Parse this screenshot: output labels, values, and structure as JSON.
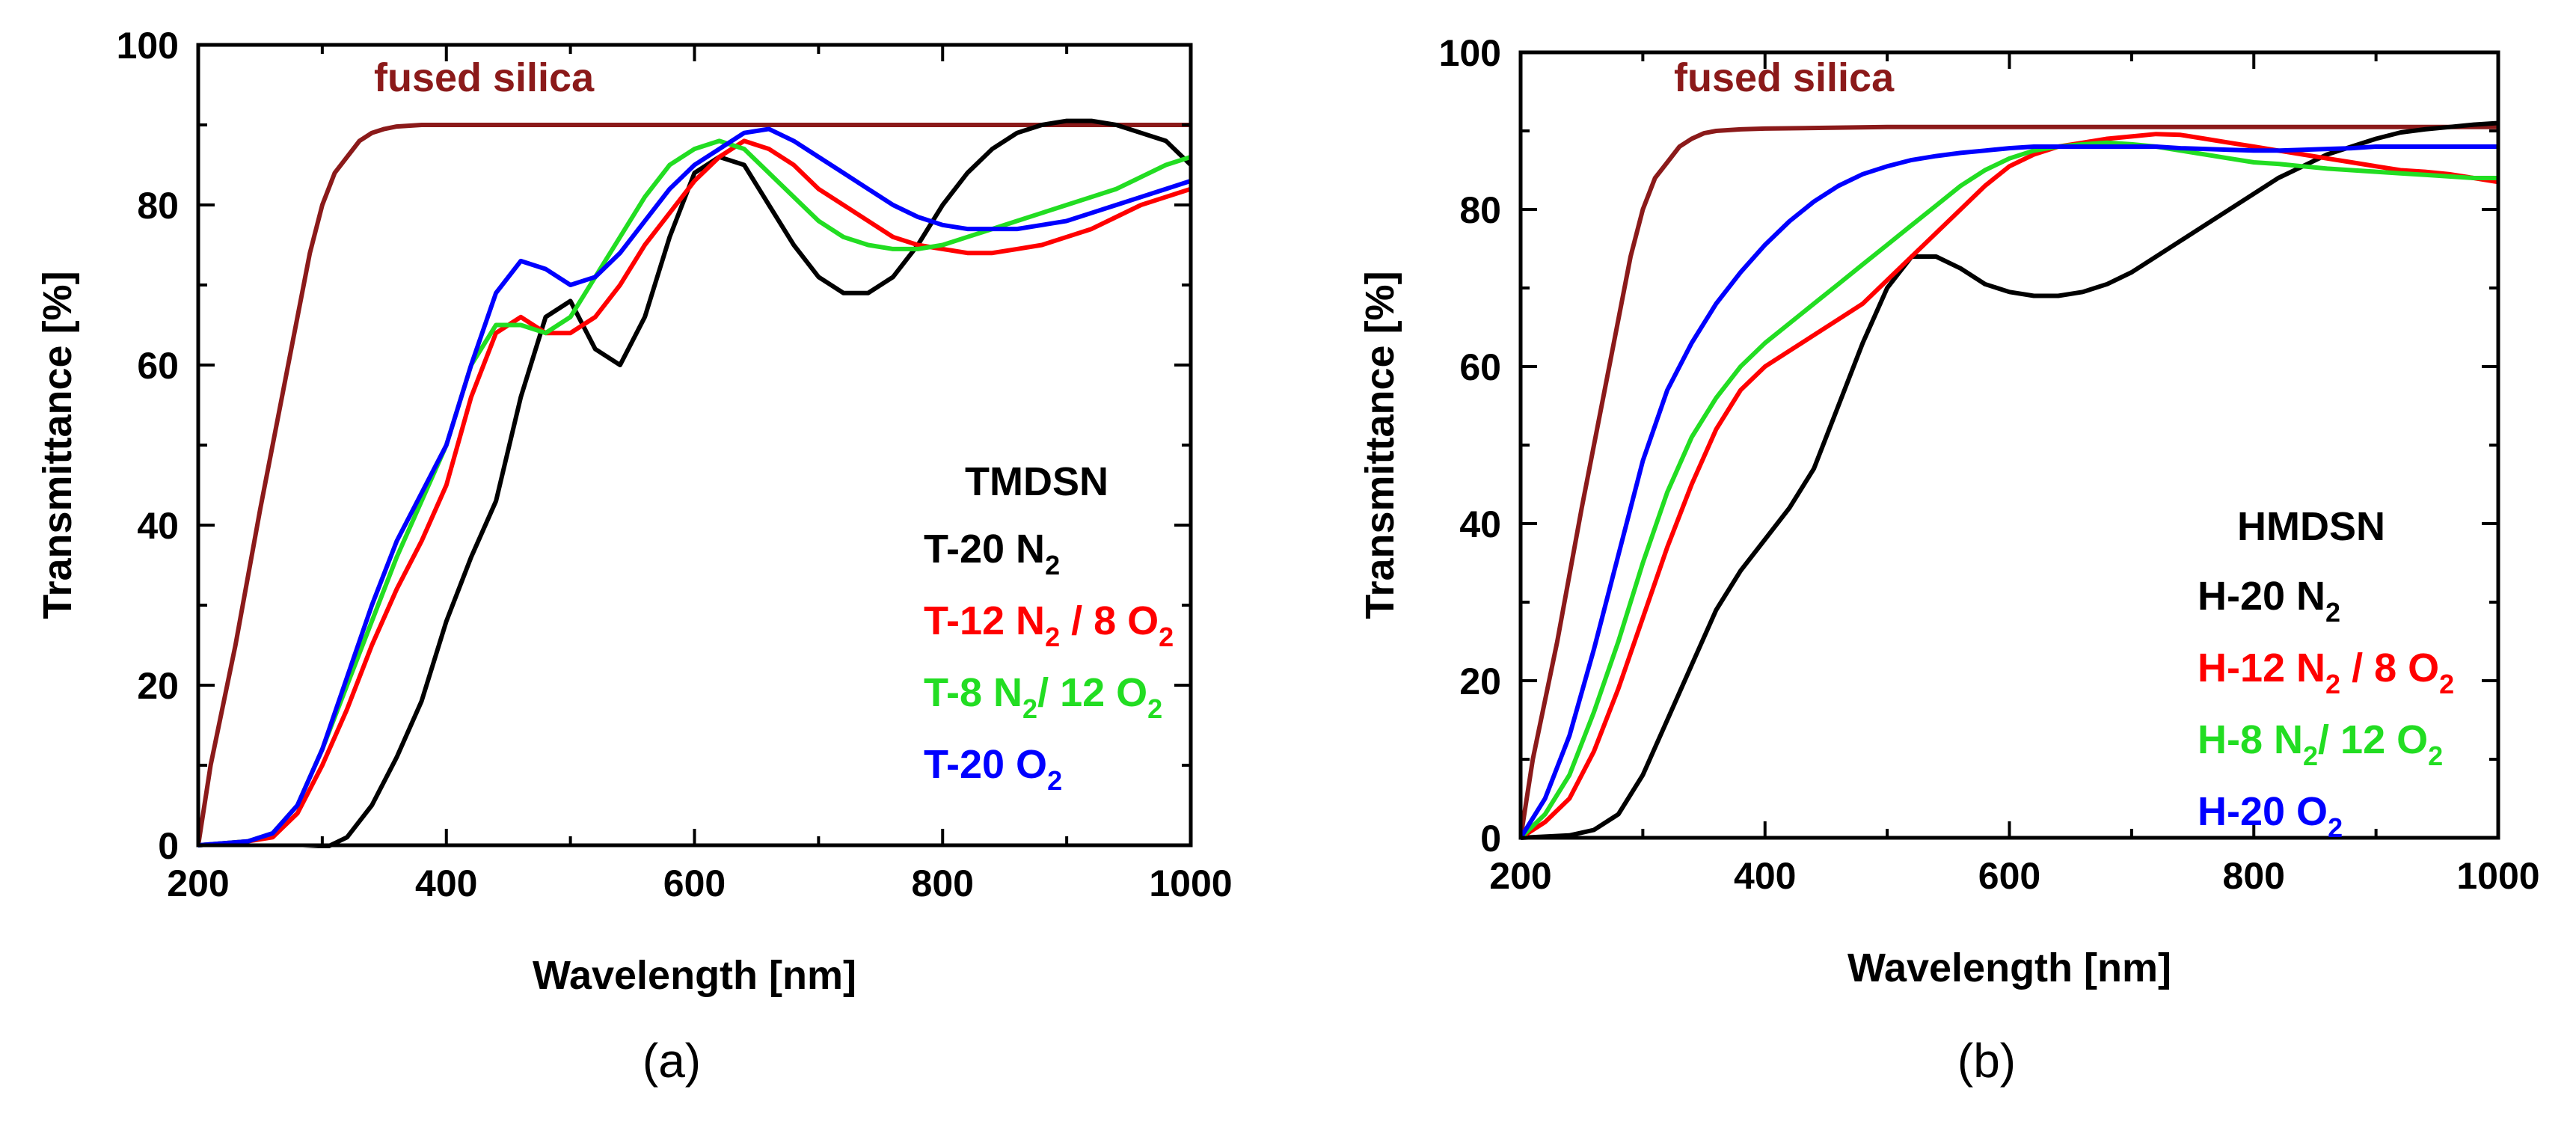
{
  "chart_data": [
    {
      "type": "line",
      "panel_label": "(a)",
      "xlabel": "Wavelength [nm]",
      "ylabel": "Transmittance [%]",
      "xlim": [
        200,
        1000
      ],
      "ylim": [
        0,
        100
      ],
      "xticks": [
        "200",
        "400",
        "600",
        "800",
        "1000"
      ],
      "yticks": [
        "0",
        "20",
        "40",
        "60",
        "80",
        "100"
      ],
      "annotation": {
        "text": "fused silica",
        "color": "#8b1a1a"
      },
      "legend": {
        "title": "TMDSN",
        "entries": [
          {
            "label": "T-20 N",
            "parts": [
              [
                "T-20 N",
                false
              ],
              [
                "2",
                true
              ]
            ],
            "color": "#000000"
          },
          {
            "label": "T-12 N2 / 8 O2",
            "parts": [
              [
                "T-12 N",
                false
              ],
              [
                "2",
                true
              ],
              [
                " / 8 O",
                false
              ],
              [
                "2",
                true
              ]
            ],
            "color": "#ff0000"
          },
          {
            "label": "T-8 N2/ 12 O2",
            "parts": [
              [
                "T-8 N",
                false
              ],
              [
                "2",
                true
              ],
              [
                "/ 12 O",
                false
              ],
              [
                "2",
                true
              ]
            ],
            "color": "#22dd22"
          },
          {
            "label": "T-20 O2",
            "parts": [
              [
                "T-20 O",
                false
              ],
              [
                "2",
                true
              ]
            ],
            "color": "#0000ff"
          }
        ]
      },
      "series": [
        {
          "name": "fused silica",
          "color": "#8b1a1a",
          "x": [
            200,
            210,
            230,
            250,
            270,
            290,
            300,
            310,
            320,
            330,
            340,
            350,
            360,
            380,
            400,
            500,
            700,
            900,
            1000
          ],
          "y": [
            0,
            10,
            25,
            42,
            58,
            74,
            80,
            84,
            86,
            88,
            89,
            89.5,
            89.8,
            90,
            90,
            90,
            90,
            90,
            90
          ]
        },
        {
          "name": "T-20 N2",
          "color": "#000000",
          "x": [
            200,
            250,
            300,
            320,
            340,
            360,
            380,
            400,
            420,
            440,
            460,
            480,
            500,
            520,
            540,
            560,
            580,
            600,
            620,
            640,
            660,
            680,
            700,
            720,
            740,
            760,
            780,
            800,
            820,
            840,
            860,
            880,
            900,
            920,
            940,
            960,
            980,
            1000
          ],
          "y": [
            -1,
            -1,
            -0.5,
            1,
            5,
            11,
            18,
            28,
            36,
            43,
            56,
            66,
            68,
            62,
            60,
            66,
            76,
            84,
            86,
            85,
            80,
            75,
            71,
            69,
            69,
            71,
            75,
            80,
            84,
            87,
            89,
            90,
            90.5,
            90.5,
            90,
            89,
            88,
            85
          ]
        },
        {
          "name": "T-12 N2 / 8 O2",
          "color": "#ff0000",
          "x": [
            200,
            240,
            260,
            280,
            300,
            320,
            340,
            360,
            380,
            400,
            420,
            440,
            460,
            480,
            500,
            520,
            540,
            560,
            580,
            600,
            620,
            640,
            660,
            680,
            700,
            720,
            740,
            760,
            780,
            800,
            820,
            840,
            860,
            880,
            900,
            920,
            940,
            960,
            980,
            1000
          ],
          "y": [
            0,
            0.5,
            1,
            4,
            10,
            17,
            25,
            32,
            38,
            45,
            56,
            64,
            66,
            64,
            64,
            66,
            70,
            75,
            79,
            83,
            86,
            88,
            87,
            85,
            82,
            80,
            78,
            76,
            75,
            74.5,
            74,
            74,
            74.5,
            75,
            76,
            77,
            78.5,
            80,
            81,
            82
          ]
        },
        {
          "name": "T-8 N2/ 12 O2",
          "color": "#22dd22",
          "x": [
            200,
            240,
            260,
            280,
            300,
            320,
            340,
            360,
            380,
            400,
            420,
            440,
            460,
            480,
            500,
            520,
            540,
            560,
            580,
            600,
            620,
            640,
            660,
            680,
            700,
            720,
            740,
            760,
            780,
            800,
            820,
            840,
            860,
            880,
            900,
            920,
            940,
            960,
            980,
            1000
          ],
          "y": [
            0,
            0.5,
            1.5,
            5,
            12,
            20,
            28,
            36,
            43,
            50,
            60,
            65,
            65,
            64,
            66,
            71,
            76,
            81,
            85,
            87,
            88,
            87,
            84,
            81,
            78,
            76,
            75,
            74.5,
            74.5,
            75,
            76,
            77,
            78,
            79,
            80,
            81,
            82,
            83.5,
            85,
            86
          ]
        },
        {
          "name": "T-20 O2",
          "color": "#0000ff",
          "x": [
            200,
            240,
            260,
            280,
            300,
            320,
            340,
            360,
            380,
            400,
            420,
            440,
            460,
            480,
            500,
            520,
            540,
            560,
            580,
            600,
            620,
            640,
            660,
            680,
            700,
            720,
            740,
            760,
            780,
            800,
            820,
            840,
            860,
            880,
            900,
            920,
            940,
            960,
            980,
            1000
          ],
          "y": [
            0,
            0.5,
            1.5,
            5,
            12,
            21,
            30,
            38,
            44,
            50,
            60,
            69,
            73,
            72,
            70,
            71,
            74,
            78,
            82,
            85,
            87,
            89,
            89.5,
            88,
            86,
            84,
            82,
            80,
            78.5,
            77.5,
            77,
            77,
            77,
            77.5,
            78,
            79,
            80,
            81,
            82,
            83
          ]
        }
      ]
    },
    {
      "type": "line",
      "panel_label": "(b)",
      "xlabel": "Wavelength [nm]",
      "ylabel": "Transmittance [%]",
      "xlim": [
        200,
        1000
      ],
      "ylim": [
        0,
        100
      ],
      "xticks": [
        "200",
        "400",
        "600",
        "800",
        "1000"
      ],
      "yticks": [
        "0",
        "20",
        "40",
        "60",
        "80",
        "100"
      ],
      "annotation": {
        "text": "fused silica",
        "color": "#8b1a1a"
      },
      "legend": {
        "title": "HMDSN",
        "entries": [
          {
            "label": "H-20 N2",
            "parts": [
              [
                "H-20 N",
                false
              ],
              [
                "2",
                true
              ]
            ],
            "color": "#000000"
          },
          {
            "label": "H-12 N2 / 8 O2",
            "parts": [
              [
                "H-12 N",
                false
              ],
              [
                "2",
                true
              ],
              [
                " / 8 O",
                false
              ],
              [
                "2",
                true
              ]
            ],
            "color": "#ff0000"
          },
          {
            "label": "H-8 N2/ 12 O2",
            "parts": [
              [
                "H-8 N",
                false
              ],
              [
                "2",
                true
              ],
              [
                "/ 12 O",
                false
              ],
              [
                "2",
                true
              ]
            ],
            "color": "#22dd22"
          },
          {
            "label": "H-20 O2",
            "parts": [
              [
                "H-20 O",
                false
              ],
              [
                "2",
                true
              ]
            ],
            "color": "#0000ff"
          }
        ]
      },
      "series": [
        {
          "name": "fused silica",
          "color": "#8b1a1a",
          "x": [
            200,
            210,
            230,
            250,
            270,
            290,
            300,
            310,
            320,
            330,
            340,
            350,
            360,
            380,
            400,
            500,
            700,
            900,
            1000
          ],
          "y": [
            0,
            10,
            25,
            42,
            58,
            74,
            80,
            84,
            86,
            88,
            89,
            89.7,
            90,
            90.2,
            90.3,
            90.5,
            90.5,
            90.5,
            90.5
          ]
        },
        {
          "name": "H-20 N2",
          "color": "#000000",
          "x": [
            200,
            240,
            260,
            280,
            300,
            320,
            340,
            360,
            380,
            400,
            420,
            440,
            460,
            480,
            500,
            520,
            540,
            560,
            580,
            600,
            620,
            640,
            660,
            680,
            700,
            720,
            740,
            760,
            780,
            800,
            820,
            840,
            860,
            880,
            900,
            920,
            940,
            960,
            980,
            1000
          ],
          "y": [
            0,
            0.3,
            1,
            3,
            8,
            15,
            22,
            29,
            34,
            38,
            42,
            47,
            55,
            63,
            70,
            74,
            74,
            72.5,
            70.5,
            69.5,
            69,
            69,
            69.5,
            70.5,
            72,
            74,
            76,
            78,
            80,
            82,
            84,
            85.5,
            87,
            88,
            89,
            89.8,
            90.2,
            90.5,
            90.8,
            91
          ]
        },
        {
          "name": "H-12 N2 / 8 O2",
          "color": "#ff0000",
          "x": [
            200,
            220,
            240,
            260,
            280,
            300,
            320,
            340,
            360,
            380,
            400,
            420,
            440,
            460,
            480,
            500,
            520,
            540,
            560,
            580,
            600,
            620,
            640,
            660,
            680,
            700,
            720,
            740,
            760,
            780,
            800,
            820,
            840,
            860,
            880,
            900,
            920,
            940,
            960,
            980,
            1000
          ],
          "y": [
            0,
            2,
            5,
            11,
            19,
            28,
            37,
            45,
            52,
            57,
            60,
            62,
            64,
            66,
            68,
            71,
            74,
            77,
            80,
            83,
            85.5,
            87,
            88,
            88.5,
            89,
            89.3,
            89.6,
            89.5,
            89,
            88.5,
            88,
            87.5,
            87,
            86.5,
            86,
            85.5,
            85,
            84.8,
            84.5,
            84,
            83.5
          ]
        },
        {
          "name": "H-8 N2/ 12 O2",
          "color": "#22dd22",
          "x": [
            200,
            220,
            240,
            260,
            280,
            300,
            320,
            340,
            360,
            380,
            400,
            420,
            440,
            460,
            480,
            500,
            520,
            540,
            560,
            580,
            600,
            620,
            640,
            660,
            680,
            700,
            720,
            740,
            760,
            780,
            800,
            820,
            840,
            860,
            880,
            900,
            920,
            940,
            960,
            980,
            1000
          ],
          "y": [
            0,
            3,
            8,
            16,
            25,
            35,
            44,
            51,
            56,
            60,
            63,
            65.5,
            68,
            70.5,
            73,
            75.5,
            78,
            80.5,
            83,
            85,
            86.5,
            87.5,
            88,
            88.3,
            88.5,
            88.3,
            88,
            87.5,
            87,
            86.5,
            86,
            85.8,
            85.5,
            85.2,
            85,
            84.8,
            84.6,
            84.4,
            84.2,
            84,
            84
          ]
        },
        {
          "name": "H-20 O2",
          "color": "#0000ff",
          "x": [
            200,
            220,
            240,
            260,
            280,
            300,
            320,
            340,
            360,
            380,
            400,
            420,
            440,
            460,
            480,
            500,
            520,
            540,
            560,
            580,
            600,
            620,
            640,
            660,
            680,
            700,
            720,
            740,
            760,
            780,
            800,
            820,
            840,
            860,
            880,
            900,
            920,
            940,
            960,
            980,
            1000
          ],
          "y": [
            0,
            5,
            13,
            24,
            36,
            48,
            57,
            63,
            68,
            72,
            75.5,
            78.5,
            81,
            83,
            84.5,
            85.5,
            86.3,
            86.8,
            87.2,
            87.5,
            87.8,
            88,
            88,
            88,
            88,
            88,
            88,
            87.8,
            87.7,
            87.6,
            87.5,
            87.5,
            87.6,
            87.7,
            87.8,
            88,
            88,
            88,
            88,
            88,
            88
          ]
        }
      ]
    }
  ]
}
